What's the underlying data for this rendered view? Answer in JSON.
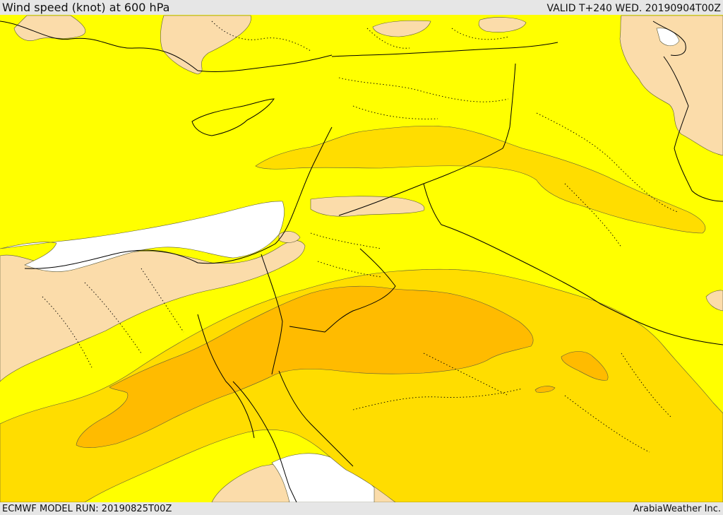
{
  "header": {
    "title": "Wind speed (knot) at 600 hPa",
    "valid": "VALID T+240 WED. 20190904T00Z"
  },
  "footer": {
    "model_run": "ECMWF MODEL RUN: 20190825T00Z",
    "brand": "ArabiaWeather Inc."
  },
  "map": {
    "colors": {
      "below_band": "#ffffff",
      "band_1": "#fbdcaa",
      "band_2": "#ffff00",
      "band_3": "#ffdd00",
      "band_4": "#ffbb00",
      "borders": "#000000"
    }
  }
}
